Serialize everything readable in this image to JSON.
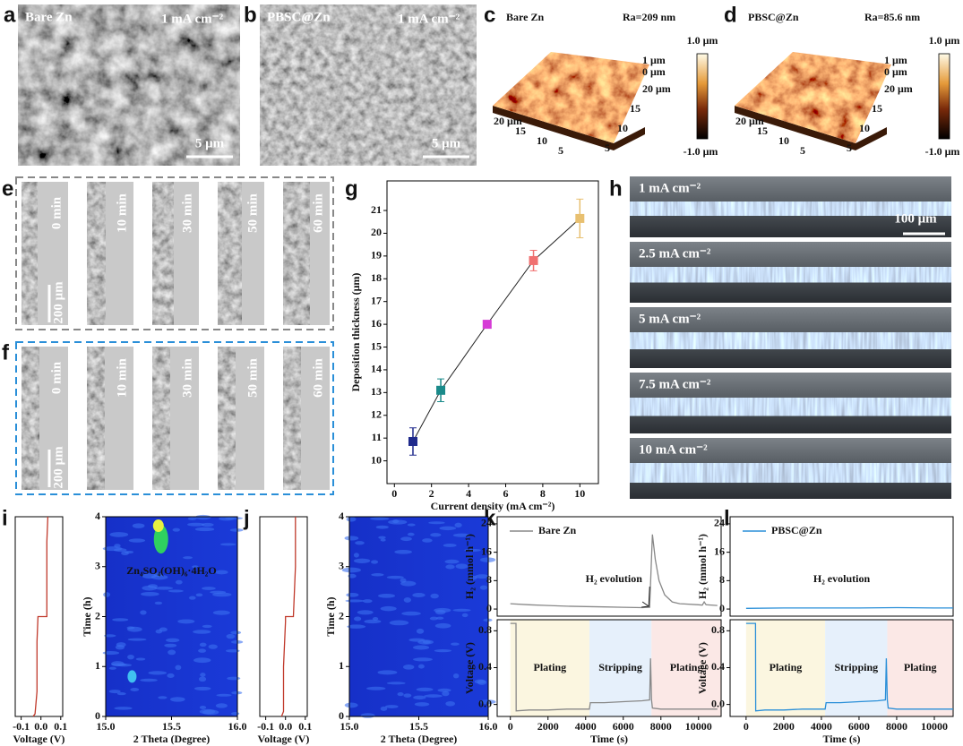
{
  "panels": [
    "a",
    "b",
    "c",
    "d",
    "e",
    "f",
    "g",
    "h",
    "i",
    "j",
    "k",
    "l"
  ],
  "a": {
    "sample": "Bare Zn",
    "current": "1 mA cm⁻²",
    "scale": "5 μm"
  },
  "b": {
    "sample": "PBSC@Zn",
    "current": "1 mA cm⁻²",
    "scale": "5 μm"
  },
  "c": {
    "sample": "Bare Zn",
    "roughness": "Ra=209 nm",
    "colorbar_top": "1.0 μm",
    "colorbar_bottom": "-1.0 μm",
    "z_ticks": [
      "1 μm",
      "0 μm"
    ],
    "left_ticks": [
      "20 μm",
      "15",
      "10",
      "5"
    ],
    "right_ticks": [
      "20 μm",
      "15",
      "10",
      "5"
    ]
  },
  "d": {
    "sample": "PBSC@Zn",
    "roughness": "Ra=85.6 nm",
    "colorbar_top": "1.0 μm",
    "colorbar_bottom": "-1.0 μm",
    "z_ticks": [
      "1 μm",
      "0 μm"
    ],
    "left_ticks": [
      "20 μm",
      "15",
      "10",
      "5"
    ],
    "right_ticks": [
      "20 μm",
      "15",
      "10",
      "5"
    ]
  },
  "e": {
    "times": [
      "0 min",
      "10 min",
      "30 min",
      "50 min",
      "60 min"
    ],
    "scale": "200 μm"
  },
  "f": {
    "times": [
      "0 min",
      "10 min",
      "30 min",
      "50 min",
      "60 min"
    ],
    "scale": "200 μm"
  },
  "h": {
    "currents": [
      "1 mA cm⁻²",
      "2.5 mA cm⁻²",
      "5 mA cm⁻²",
      "7.5 mA cm⁻²",
      "10 mA cm⁻²"
    ],
    "scale": "100 μm"
  },
  "chart_data": [
    {
      "type": "errorbar",
      "xlabel": "Current density (mA cm⁻²)",
      "ylabel": "Deposition thickness (μm)",
      "x": [
        1,
        2.5,
        5,
        7.5,
        10
      ],
      "values": [
        10.85,
        13.1,
        16.0,
        18.8,
        20.65
      ],
      "errors": [
        0.6,
        0.5,
        0.1,
        0.45,
        0.85
      ],
      "colors": [
        "#1f2a8c",
        "#1a8a8a",
        "#d63bd6",
        "#f07070",
        "#e8c070"
      ],
      "line_color": "#222",
      "xlim": [
        -0.4,
        11
      ],
      "xticks": [
        0,
        2,
        4,
        6,
        8,
        10
      ],
      "ylim": [
        9,
        22.3
      ],
      "yticks": [
        10,
        11,
        12,
        13,
        14,
        15,
        16,
        17,
        18,
        19,
        20,
        21
      ]
    },
    {
      "type": "line",
      "xlabel": "Voltage (V)",
      "xlim": [
        -0.13,
        0.11
      ],
      "xticks": [
        -0.1,
        {
          "value": 0,
          "label": "0.0"
        },
        0.1
      ],
      "ylim": [
        0,
        4
      ],
      "series": [
        {
          "color": "#c0392b",
          "values": [
            -0.04,
            -0.03,
            -0.02,
            -0.02,
            -0.015,
            0.03,
            0.03,
            0.035
          ],
          "y": [
            0,
            0.05,
            0.5,
            1.5,
            2.0,
            2.0,
            3.5,
            4.0
          ]
        }
      ]
    },
    {
      "type": "heatmap",
      "xlabel": "2 Theta (Degree)",
      "ylabel": "Time (h)",
      "xlim": [
        15,
        16
      ],
      "xticks": [
        {
          "value": 15,
          "label": "15.0"
        },
        {
          "value": 15.5,
          "label": "15.5"
        },
        {
          "value": 16,
          "label": "16.0"
        }
      ],
      "ylim": [
        0,
        4
      ],
      "yticks": [
        0,
        1,
        2,
        3,
        4
      ],
      "annotation": "Zn₄SO₄(OH)₆·4H₂O"
    },
    {
      "type": "line",
      "xlabel": "Voltage (V)",
      "xlim": [
        -0.13,
        0.11
      ],
      "xticks": [
        -0.1,
        {
          "value": 0,
          "label": "0.0"
        },
        0.1
      ],
      "ylim": [
        0,
        4
      ],
      "series": [
        {
          "color": "#c0392b",
          "values": [
            -0.02,
            -0.01,
            -0.01,
            0.0,
            0.0,
            0.04,
            0.05,
            0.05
          ],
          "y": [
            0,
            0.1,
            1,
            1.9,
            2.0,
            2.0,
            3,
            4
          ]
        }
      ]
    },
    {
      "type": "heatmap",
      "xlabel": "2 Theta (Degree)",
      "ylabel": "Time (h)",
      "xlim": [
        15,
        16
      ],
      "xticks": [
        {
          "value": 15,
          "label": "15.0"
        },
        {
          "value": 15.5,
          "label": "15.5"
        },
        {
          "value": 16,
          "label": "16.0"
        }
      ],
      "ylim": [
        0,
        4
      ],
      "yticks": [
        0,
        1,
        2,
        3,
        4
      ]
    },
    {
      "type": "line",
      "ylabel": "H₂ (mmol h⁻¹)",
      "xlim": [
        -700,
        11200
      ],
      "ylim": [
        -2,
        26
      ],
      "yticks": [
        0,
        8,
        16,
        24
      ],
      "annotation": "H₂ evolution",
      "annotation_color": "#666",
      "series": [
        {
          "name": "Bare Zn",
          "color": "#888",
          "x": [
            0,
            1000,
            2000,
            3000,
            4000,
            5000,
            6000,
            7000,
            7400,
            7550,
            7700,
            7900,
            8200,
            8600,
            9000,
            10000,
            10200,
            10300,
            10400,
            11000
          ],
          "values": [
            1.5,
            1.2,
            1.0,
            0.8,
            0.7,
            0.6,
            0.5,
            0.4,
            0.5,
            21,
            14,
            8,
            4,
            2,
            1.5,
            1.2,
            1.1,
            2,
            1.2,
            1
          ]
        }
      ]
    },
    {
      "type": "line",
      "xlabel": "Time (s)",
      "ylabel": "Voltage (V)",
      "xlim": [
        -700,
        11200
      ],
      "xticks": [
        0,
        2000,
        4000,
        6000,
        8000,
        10000
      ],
      "ylim": [
        -0.13,
        0.92
      ],
      "yticks": [
        {
          "value": 0,
          "label": "0.0"
        },
        0.4,
        0.8
      ],
      "regions": [
        {
          "label": "Plating",
          "start": 0,
          "end": 4200,
          "color": "#fbf6e0"
        },
        {
          "label": "Stripping",
          "start": 4200,
          "end": 7500,
          "color": "#e6f0fb"
        },
        {
          "label": "Plating",
          "start": 7500,
          "end": 11200,
          "color": "#fbe8e6"
        }
      ],
      "series": [
        {
          "color": "#888",
          "x": [
            0,
            300,
            310,
            1000,
            2000,
            3000,
            4200,
            4250,
            5000,
            6000,
            7000,
            7400,
            7450,
            7500,
            7550,
            8000,
            9000,
            10000,
            11000
          ],
          "values": [
            0.88,
            0.88,
            -0.07,
            -0.06,
            -0.06,
            -0.05,
            -0.05,
            0.02,
            0.02,
            0.03,
            0.04,
            0.05,
            0.5,
            0.05,
            -0.04,
            -0.05,
            -0.05,
            -0.05,
            -0.05
          ]
        }
      ]
    },
    {
      "type": "line",
      "ylabel": "H₂ (mmol h⁻¹)",
      "xlim": [
        -850,
        11000
      ],
      "ylim": [
        -2,
        26
      ],
      "yticks": [
        0,
        8,
        16,
        24
      ],
      "annotation": "H₂ evolution",
      "annotation_color": "#2a8fd8",
      "series": [
        {
          "name": "PBSC@Zn",
          "color": "#2a8fd8",
          "x": [
            0,
            2000,
            4000,
            6000,
            8000,
            10000,
            11000
          ],
          "values": [
            0.2,
            0.3,
            0.3,
            0.3,
            0.4,
            0.3,
            0.3
          ]
        }
      ]
    },
    {
      "type": "line",
      "xlabel": "Time (s)",
      "ylabel": "Voltage (V)",
      "xlim": [
        -850,
        11000
      ],
      "xticks": [
        0,
        2000,
        4000,
        6000,
        8000,
        10000
      ],
      "ylim": [
        -0.13,
        0.92
      ],
      "yticks": [
        {
          "value": 0,
          "label": "0.0"
        },
        0.4,
        0.8
      ],
      "regions": [
        {
          "label": "Plating",
          "start": 0,
          "end": 4200,
          "color": "#fbf6e0"
        },
        {
          "label": "Stripping",
          "start": 4200,
          "end": 7500,
          "color": "#e6f0fb"
        },
        {
          "label": "Plating",
          "start": 7500,
          "end": 11000,
          "color": "#fbe8e6"
        }
      ],
      "series": [
        {
          "color": "#2a8fd8",
          "x": [
            0,
            500,
            510,
            1000,
            2000,
            3000,
            4200,
            4250,
            5000,
            6000,
            7000,
            7400,
            7450,
            7500,
            7550,
            8000,
            9000,
            10000,
            11000
          ],
          "values": [
            0.88,
            0.88,
            -0.07,
            -0.06,
            -0.06,
            -0.05,
            -0.05,
            0.02,
            0.02,
            0.03,
            0.04,
            0.05,
            0.5,
            0.05,
            -0.04,
            -0.05,
            -0.05,
            -0.05,
            -0.05
          ]
        }
      ]
    }
  ]
}
